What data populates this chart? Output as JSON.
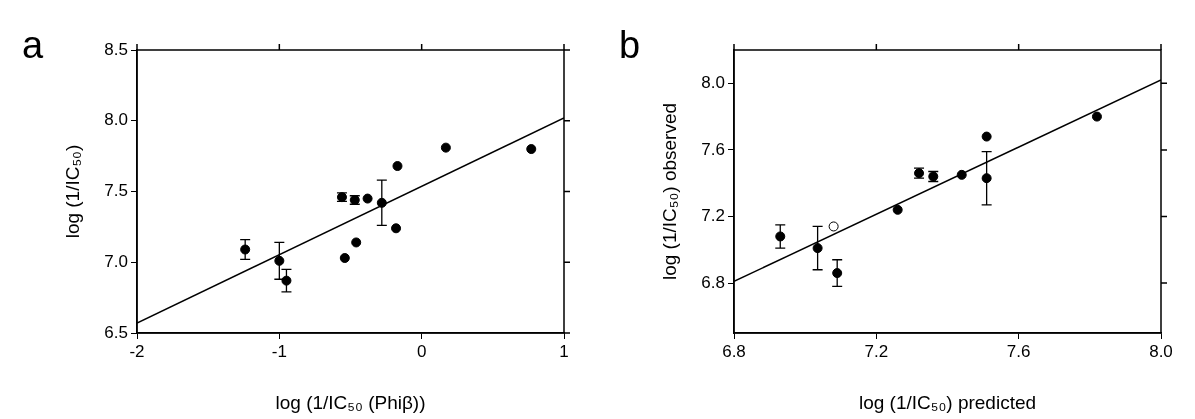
{
  "chart_data": [
    {
      "type": "scatter",
      "xlabel": "log (1/IC₅₀ (Phiβ))",
      "ylabel": "log (1/IC₅₀)",
      "annotations": [
        "a"
      ],
      "xlim": [
        -2,
        1
      ],
      "ylim": [
        6.5,
        8.5
      ],
      "xticks": [
        -2,
        -1,
        0,
        1
      ],
      "yticks": [
        {
          "value": 6.5,
          "label": "6.5"
        },
        {
          "value": 7,
          "label": "7.0"
        },
        {
          "value": 7.5,
          "label": "7.5"
        },
        {
          "value": 8,
          "label": "8.0"
        },
        {
          "value": 8.5,
          "label": "8.5"
        }
      ],
      "grid": false,
      "legend": false,
      "series": [
        {
          "marker": "circle",
          "color": "#000000",
          "x": [
            -1.24,
            -1.0,
            -0.95,
            -0.56,
            -0.47,
            -0.38,
            -0.28,
            -0.54,
            -0.46,
            -0.18,
            -0.17,
            0.17,
            0.77
          ],
          "values": [
            7.09,
            7.01,
            6.87,
            7.46,
            7.44,
            7.45,
            7.42,
            7.03,
            7.14,
            7.24,
            7.68,
            7.81,
            7.8
          ],
          "errors": [
            0.07,
            0.13,
            0.08,
            0.03,
            0.03,
            null,
            0.16,
            null,
            null,
            null,
            null,
            null,
            null
          ]
        },
        {
          "type": "line",
          "color": "#000000",
          "x": [
            -2,
            1
          ],
          "values": [
            6.57,
            8.02
          ]
        }
      ]
    },
    {
      "type": "scatter",
      "xlabel": "log (1/IC₅₀) predicted",
      "ylabel": "log (1/IC₅₀) observed",
      "annotations": [
        "b"
      ],
      "xlim": [
        6.8,
        8.0
      ],
      "ylim": [
        6.5,
        8.2
      ],
      "xticks": [
        6.8,
        7.2,
        7.6,
        {
          "value": 8,
          "label": "8.0"
        }
      ],
      "yticks": [
        6.8,
        7.2,
        7.6,
        {
          "value": 8,
          "label": "8.0"
        }
      ],
      "grid": false,
      "legend": false,
      "series": [
        {
          "marker": "circle",
          "color": "#000000",
          "x": [
            6.93,
            7.035,
            7.09,
            7.26,
            7.32,
            7.36,
            7.44,
            7.51,
            7.51,
            7.82
          ],
          "values": [
            7.08,
            7.01,
            6.86,
            7.24,
            7.46,
            7.44,
            7.45,
            7.68,
            7.43,
            7.8
          ],
          "errors": [
            0.07,
            0.13,
            0.08,
            null,
            0.03,
            0.03,
            null,
            null,
            0.16,
            null
          ]
        },
        {
          "marker": "circle",
          "color": "#ffffff",
          "x": [
            7.08
          ],
          "values": [
            7.14
          ]
        },
        {
          "type": "line",
          "color": "#000000",
          "x": [
            6.8,
            8.0
          ],
          "values": [
            6.81,
            8.02
          ]
        }
      ]
    }
  ]
}
